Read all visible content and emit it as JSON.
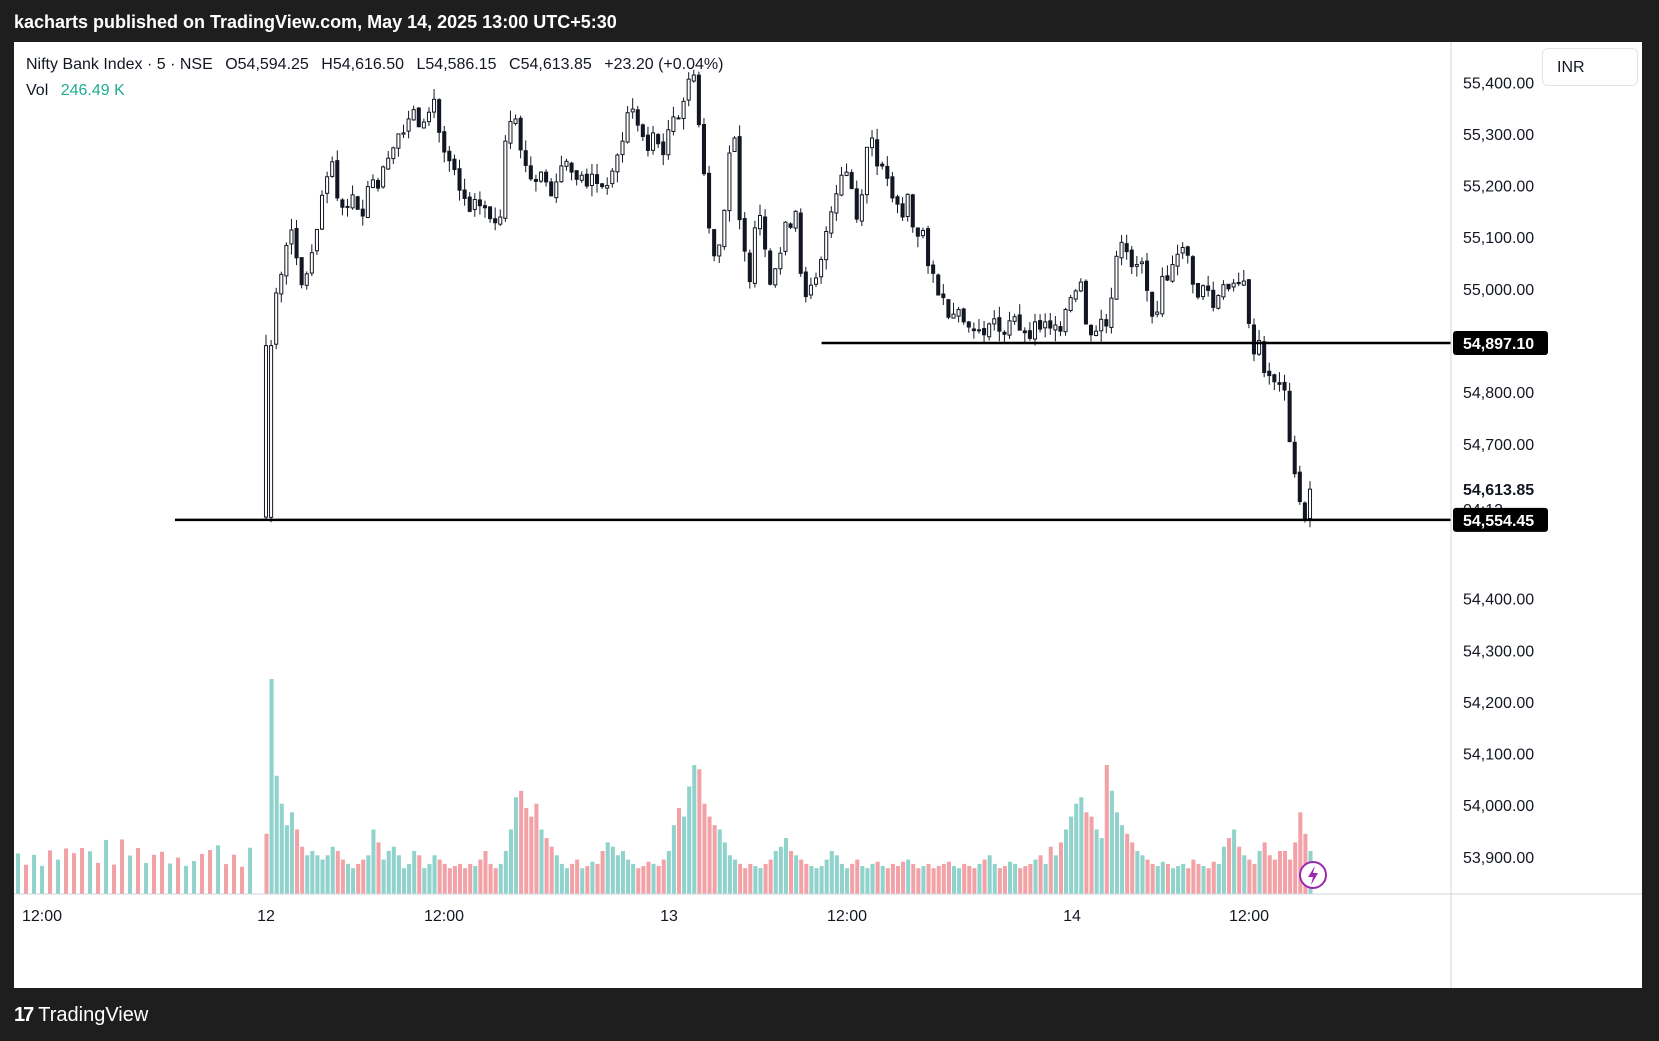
{
  "header": {
    "title": "kacharts published on TradingView.com, May 14, 2025 13:00 UTC+5:30"
  },
  "legend": {
    "symbol": "Nifty Bank Index · 5 · NSE",
    "open_label": "O",
    "open": "54,594.25",
    "high_label": "H",
    "high": "54,616.50",
    "low_label": "L",
    "low": "54,586.15",
    "close_label": "C",
    "close": "54,613.85",
    "change": "+23.20 (+0.04%)",
    "vol_label": "Vol",
    "vol_value": "246.49 K"
  },
  "currency": "INR",
  "footer": {
    "brand": "TradingView"
  },
  "colors": {
    "up": "#26a69a",
    "down": "#ef5350",
    "vol_up": "#8fd3cc",
    "vol_down": "#f2a2a6",
    "candle": "#131722",
    "grid_text": "#131722",
    "line": "#000000"
  },
  "chart_data": {
    "type": "candlestick",
    "symbol": "Nifty Bank Index",
    "interval": "5",
    "exchange": "NSE",
    "x_ticks": [
      "12:00",
      "12",
      "12:00",
      "13",
      "12:00",
      "14",
      "12:00"
    ],
    "y_ticks": [
      "55,400.00",
      "55,300.00",
      "55,200.00",
      "55,100.00",
      "55,000.00",
      "54,800.00",
      "54,700.00",
      "54,400.00",
      "54,300.00",
      "54,200.00",
      "54,100.00",
      "54,000.00",
      "53,900.00"
    ],
    "ylim": [
      53830,
      55480
    ],
    "price_labels": {
      "resistance": "54,897.10",
      "last_price": "54,613.85",
      "countdown": "04:13",
      "support": "54,554.45"
    },
    "horizontal_lines": [
      {
        "price": 54897.1,
        "x_from": 0.562
      },
      {
        "price": 54554.45,
        "x_from": 0.112
      }
    ],
    "candles_closes": [
      54560,
      54892,
      54994,
      55030,
      55086,
      55116,
      55062,
      55010,
      55031,
      55072,
      55117,
      55183,
      55219,
      55248,
      55178,
      55160,
      55161,
      55184,
      55156,
      55143,
      55200,
      55213,
      55197,
      55238,
      55255,
      55275,
      55302,
      55304,
      55331,
      55349,
      55316,
      55325,
      55344,
      55369,
      55305,
      55267,
      55250,
      55233,
      55193,
      55177,
      55152,
      55175,
      55163,
      55159,
      55138,
      55130,
      55141,
      55288,
      55326,
      55331,
      55271,
      55241,
      55215,
      55210,
      55228,
      55209,
      55182,
      55209,
      55240,
      55249,
      55228,
      55214,
      55222,
      55201,
      55224,
      55206,
      55200,
      55202,
      55230,
      55261,
      55288,
      55343,
      55350,
      55319,
      55297,
      55270,
      55304,
      55283,
      55262,
      55310,
      55335,
      55333,
      55365,
      55408,
      55416,
      55320,
      55225,
      55120,
      55066,
      55087,
      55154,
      55265,
      55294,
      55136,
      55075,
      55016,
      55120,
      55144,
      55079,
      55011,
      55041,
      55071,
      55131,
      55121,
      55152,
      55032,
      54987,
      55009,
      55023,
      55059,
      55113,
      55151,
      55186,
      55222,
      55228,
      55196,
      55137,
      55184,
      55276,
      55294,
      55240,
      55240,
      55216,
      55178,
      55166,
      55141,
      55185,
      55122,
      55104,
      55115,
      55047,
      55032,
      54990,
      54985,
      54947,
      54953,
      54962,
      54938,
      54928,
      54921,
      54922,
      54913,
      54934,
      54944,
      54920,
      54914,
      54940,
      54948,
      54922,
      54917,
      54906,
      54938,
      54924,
      54938,
      54926,
      54932,
      54920,
      54962,
      54985,
      54998,
      55015,
      54934,
      54913,
      54920,
      54943,
      54930,
      54984,
      55065,
      55092,
      55074,
      55045,
      55049,
      55054,
      54999,
      54949,
      54957,
      55026,
      55019,
      55049,
      55069,
      55082,
      55067,
      55011,
      54986,
      55008,
      54999,
      54966,
      54989,
      55010,
      55002,
      55013,
      55012,
      55017,
      54935,
      54876,
      54902,
      54840,
      54834,
      54822,
      54817,
      54806,
      54706,
      54644,
      54590,
      54556,
      54614
    ],
    "volume_relative": [
      0.28,
      1.0,
      0.55,
      0.42,
      0.32,
      0.38,
      0.3,
      0.22,
      0.18,
      0.2,
      0.18,
      0.16,
      0.18,
      0.22,
      0.2,
      0.16,
      0.14,
      0.12,
      0.14,
      0.16,
      0.18,
      0.3,
      0.24,
      0.16,
      0.2,
      0.22,
      0.18,
      0.12,
      0.14,
      0.2,
      0.18,
      0.12,
      0.14,
      0.18,
      0.16,
      0.14,
      0.12,
      0.13,
      0.14,
      0.12,
      0.14,
      0.13,
      0.16,
      0.2,
      0.14,
      0.12,
      0.14,
      0.2,
      0.3,
      0.45,
      0.48,
      0.4,
      0.36,
      0.42,
      0.3,
      0.26,
      0.22,
      0.18,
      0.14,
      0.12,
      0.14,
      0.16,
      0.12,
      0.13,
      0.15,
      0.14,
      0.2,
      0.24,
      0.22,
      0.18,
      0.2,
      0.16,
      0.14,
      0.12,
      0.13,
      0.15,
      0.14,
      0.13,
      0.16,
      0.2,
      0.32,
      0.4,
      0.36,
      0.5,
      0.6,
      0.58,
      0.42,
      0.36,
      0.32,
      0.3,
      0.24,
      0.18,
      0.16,
      0.14,
      0.12,
      0.14,
      0.13,
      0.12,
      0.14,
      0.16,
      0.2,
      0.22,
      0.26,
      0.2,
      0.18,
      0.16,
      0.14,
      0.13,
      0.12,
      0.13,
      0.16,
      0.2,
      0.18,
      0.14,
      0.12,
      0.14,
      0.16,
      0.13,
      0.12,
      0.14,
      0.15,
      0.13,
      0.12,
      0.14,
      0.13,
      0.15,
      0.16,
      0.14,
      0.12,
      0.13,
      0.14,
      0.12,
      0.13,
      0.14,
      0.15,
      0.13,
      0.12,
      0.14,
      0.13,
      0.12,
      0.14,
      0.16,
      0.18,
      0.14,
      0.12,
      0.13,
      0.15,
      0.14,
      0.12,
      0.13,
      0.14,
      0.16,
      0.18,
      0.14,
      0.22,
      0.18,
      0.24,
      0.3,
      0.36,
      0.42,
      0.45,
      0.38,
      0.36,
      0.3,
      0.26,
      0.6,
      0.48,
      0.38,
      0.32,
      0.28,
      0.24,
      0.2,
      0.18,
      0.16,
      0.14,
      0.13,
      0.15,
      0.14,
      0.12,
      0.13,
      0.14,
      0.12,
      0.16,
      0.14,
      0.13,
      0.12,
      0.15,
      0.14,
      0.22,
      0.26,
      0.3,
      0.22,
      0.18,
      0.16,
      0.14,
      0.2,
      0.24,
      0.18,
      0.16,
      0.2,
      0.2,
      0.16,
      0.24,
      0.38,
      0.28,
      0.2
    ]
  }
}
